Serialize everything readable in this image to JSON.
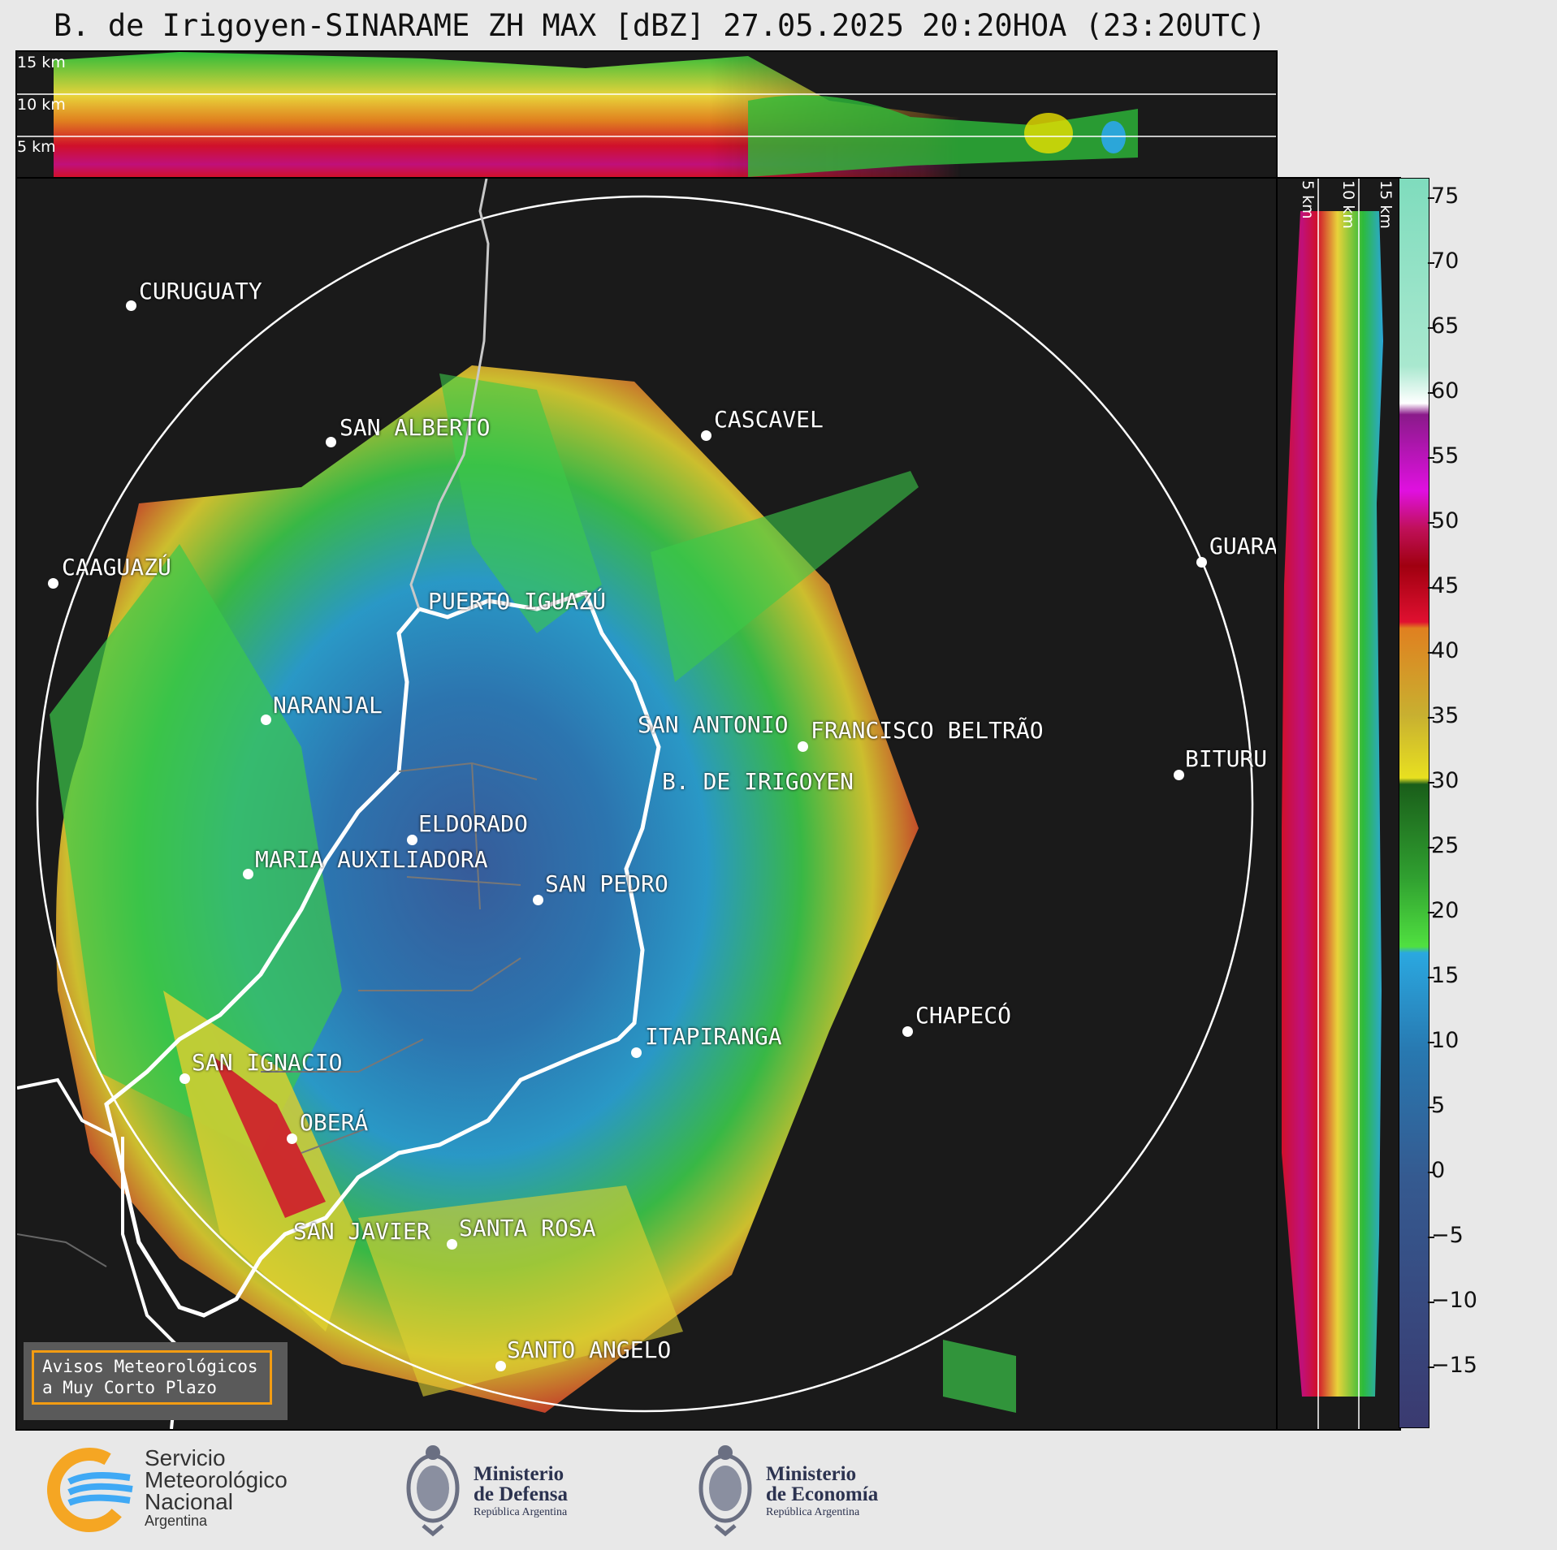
{
  "title": "B. de Irigoyen-SINARAME ZH MAX [dBZ] 27.05.2025 20:20HOA (23:20UTC)",
  "top_panel": {
    "altitudes": [
      "15 km",
      "10 km",
      "5 km"
    ]
  },
  "side_panel": {
    "altitudes": [
      "5 km",
      "10 km",
      "15 km"
    ]
  },
  "colorbar": {
    "unit": "dBZ",
    "ticks": [
      "75",
      "70",
      "65",
      "60",
      "55",
      "50",
      "45",
      "40",
      "35",
      "30",
      "25",
      "20",
      "15",
      "10",
      "5",
      "0",
      "−5",
      "−10",
      "−15"
    ]
  },
  "cities": [
    {
      "name": "CURUGUATY"
    },
    {
      "name": "SAN ALBERTO"
    },
    {
      "name": "CASCAVEL"
    },
    {
      "name": "CAAGUAZÚ"
    },
    {
      "name": "GUARA"
    },
    {
      "name": "PUERTO IGUAZÚ"
    },
    {
      "name": "NARANJAL"
    },
    {
      "name": "SAN ANTONIO"
    },
    {
      "name": "FRANCISCO BELTRÃO"
    },
    {
      "name": "BITURU"
    },
    {
      "name": "B. DE IRIGOYEN"
    },
    {
      "name": "ELDORADO"
    },
    {
      "name": "MARIA AUXILIADORA"
    },
    {
      "name": "SAN PEDRO"
    },
    {
      "name": "CHAPECÓ"
    },
    {
      "name": "ITAPIRANGA"
    },
    {
      "name": "SAN IGNACIO"
    },
    {
      "name": "OBERÁ"
    },
    {
      "name": "SAN JAVIER"
    },
    {
      "name": "SANTA ROSA"
    },
    {
      "name": "SANTO ANGELO"
    }
  ],
  "notice": {
    "line1": "Avisos Meteorológicos",
    "line2": "a Muy Corto Plazo"
  },
  "logos": {
    "smn": {
      "line1": "Servicio",
      "line2": "Meteorológico",
      "line3": "Nacional",
      "line4": "Argentina"
    },
    "defensa": {
      "line1": "Ministerio",
      "line2": "de Defensa",
      "line3": "República Argentina"
    },
    "economia": {
      "line1": "Ministerio",
      "line2": "de Economía",
      "line3": "República Argentina"
    }
  },
  "colors": {
    "background": "#1a1a1a",
    "notice_border": "#f39c12",
    "smn_blue": "#3fa9f5",
    "smn_orange": "#f5a623"
  }
}
